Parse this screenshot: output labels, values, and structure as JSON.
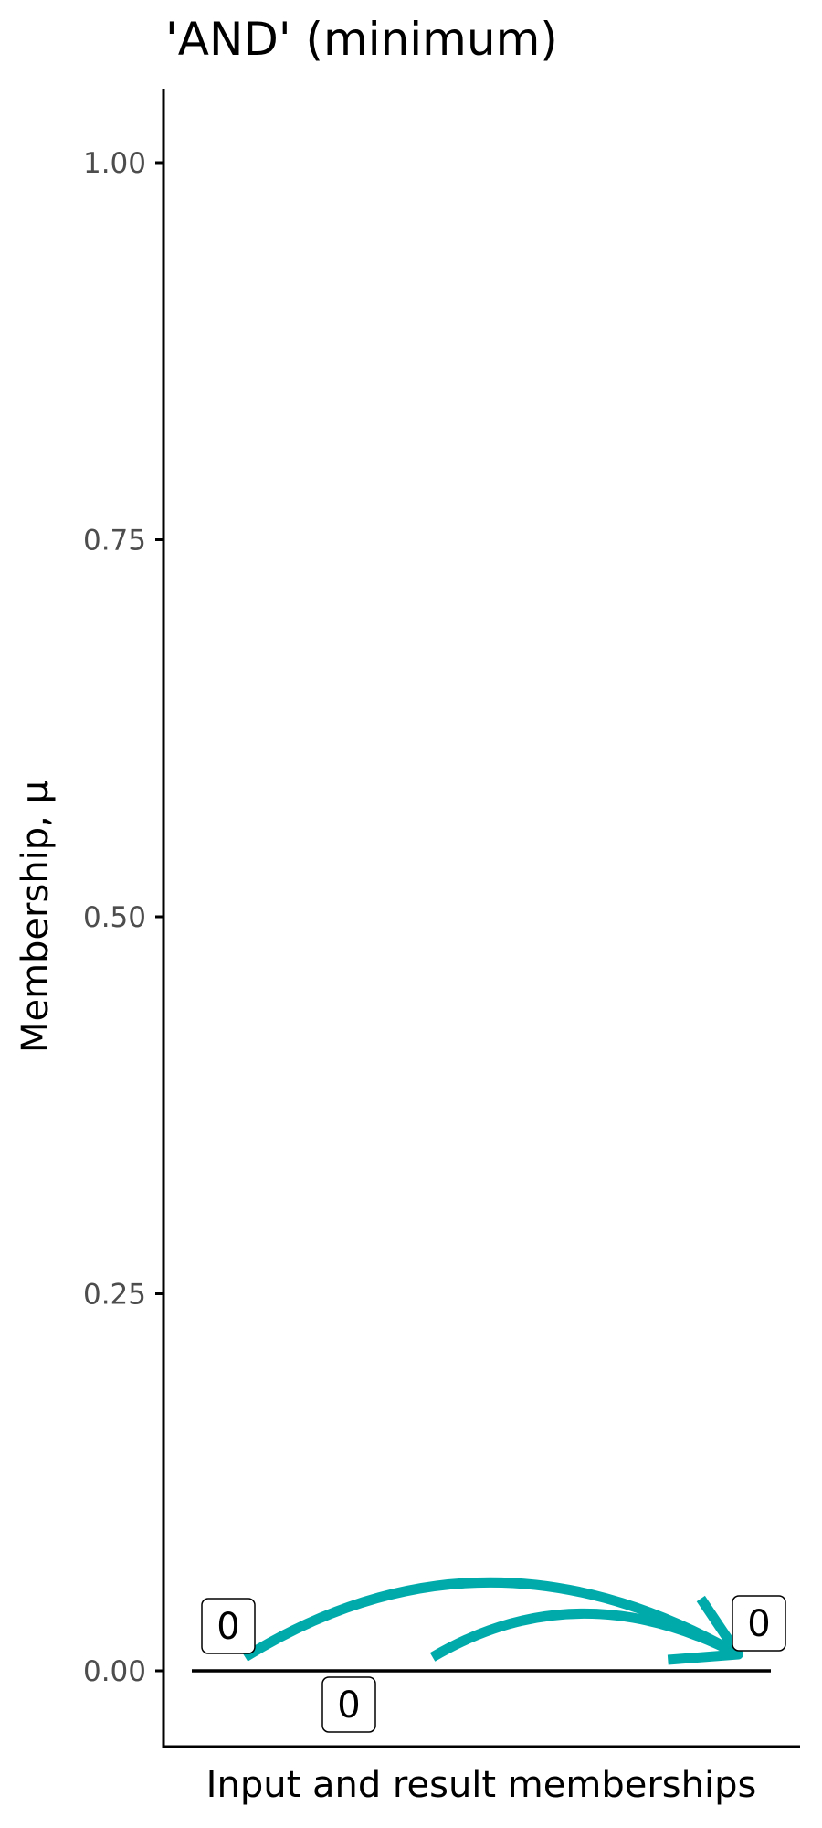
{
  "chart_data": {
    "type": "line",
    "title": "'AND' (minimum)",
    "xlabel": "Input and result memberships",
    "ylabel": "Membership, μ",
    "ylim": [
      -0.05,
      1.05
    ],
    "yticks": [
      0,
      0.25,
      0.5,
      0.75,
      1
    ],
    "ytick_labels": [
      "0.00",
      "0.25",
      "0.50",
      "0.75",
      "1.00"
    ],
    "grid": false,
    "baseline": 0,
    "points": [
      {
        "role": "input",
        "position": 0.1,
        "value": 0,
        "label": "0",
        "label_side": "above"
      },
      {
        "role": "input",
        "position": 0.4,
        "value": 0,
        "label": "0",
        "label_side": "below"
      },
      {
        "role": "result",
        "position": 0.95,
        "value": 0,
        "label": "0",
        "label_side": "above"
      }
    ],
    "arrows": [
      {
        "from": 0,
        "to": 2
      },
      {
        "from": 1,
        "to": 2
      }
    ],
    "colors": {
      "arrow": "#00AAAA",
      "axis": "#000000",
      "tick_label": "#4D4D4D"
    }
  }
}
